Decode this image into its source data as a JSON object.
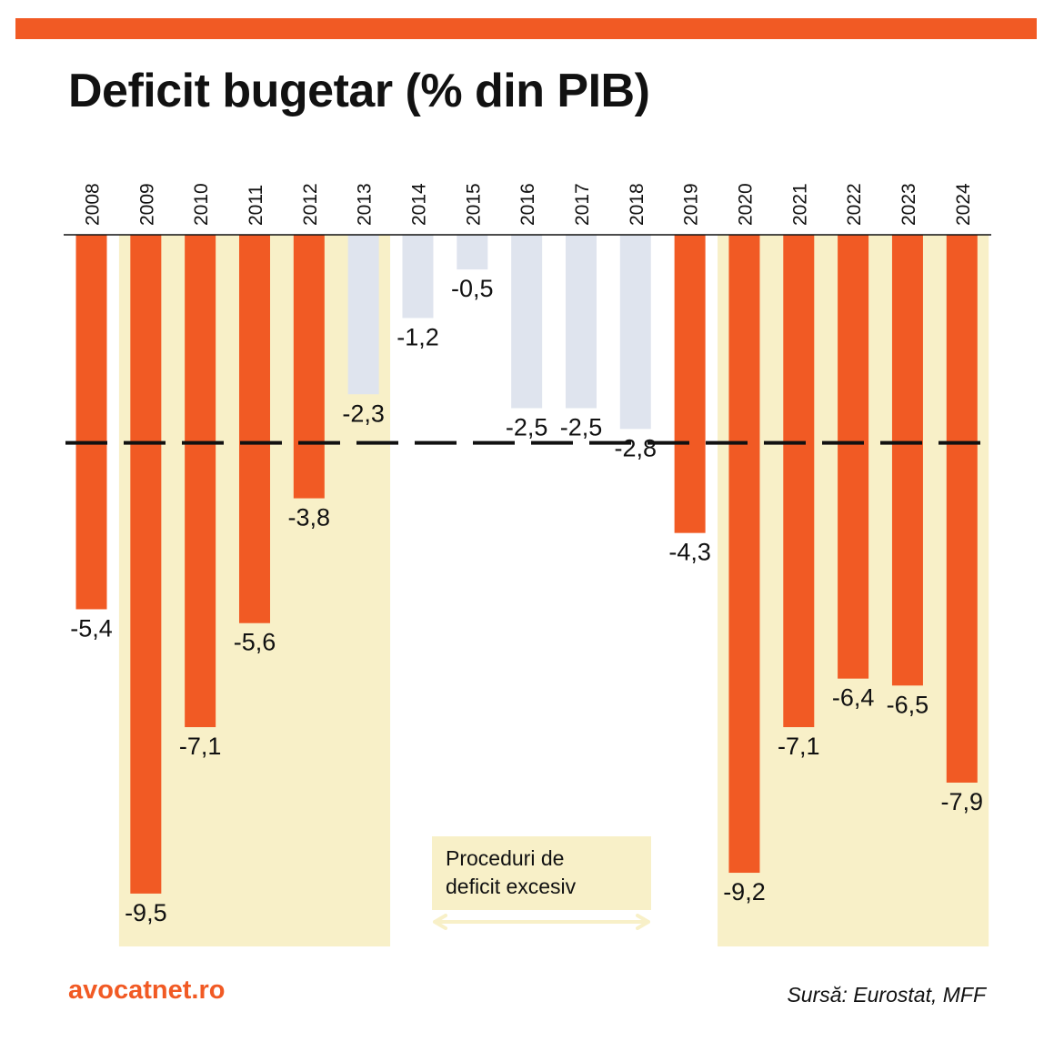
{
  "title": "Deficit bugetar (% din PIB)",
  "brand": "avocatnet.ro",
  "source": "Sursă: Eurostat, MFF",
  "annotation": {
    "line1": "Proceduri de",
    "line2": "deficit excesiv"
  },
  "colors": {
    "accent": "#f15a24",
    "light_bar": "#dfe4ee",
    "highlight_band": "#f8f0c8",
    "threshold_line": "#111111"
  },
  "chart_data": {
    "type": "bar",
    "title": "Deficit bugetar (% din PIB)",
    "categories": [
      "2008",
      "2009",
      "2010",
      "2011",
      "2012",
      "2013",
      "2014",
      "2015",
      "2016",
      "2017",
      "2018",
      "2019",
      "2020",
      "2021",
      "2022",
      "2023",
      "2024"
    ],
    "values": [
      -5.4,
      -9.5,
      -7.1,
      -5.6,
      -3.8,
      -2.3,
      -1.2,
      -0.5,
      -2.5,
      -2.5,
      -2.8,
      -4.3,
      -9.2,
      -7.1,
      -6.4,
      -6.5,
      -7.9
    ],
    "value_labels": [
      "-5,4",
      "-9,5",
      "-7,1",
      "-5,6",
      "-3,8",
      "-2,3",
      "-1,2",
      "-0,5",
      "-2,5",
      "-2,5",
      "-2,8",
      "-4,3",
      "-9,2",
      "-7,1",
      "-6,4",
      "-6,5",
      "-7,9"
    ],
    "highlight": [
      true,
      true,
      true,
      true,
      true,
      false,
      false,
      false,
      false,
      false,
      false,
      true,
      true,
      true,
      true,
      true,
      true
    ],
    "reference_line": -3,
    "excessive_deficit_periods": [
      [
        "2009",
        "2013"
      ],
      [
        "2020",
        "2024"
      ]
    ],
    "ylim": [
      -10.5,
      0
    ],
    "xlabel": "",
    "ylabel": "",
    "grid": false
  }
}
